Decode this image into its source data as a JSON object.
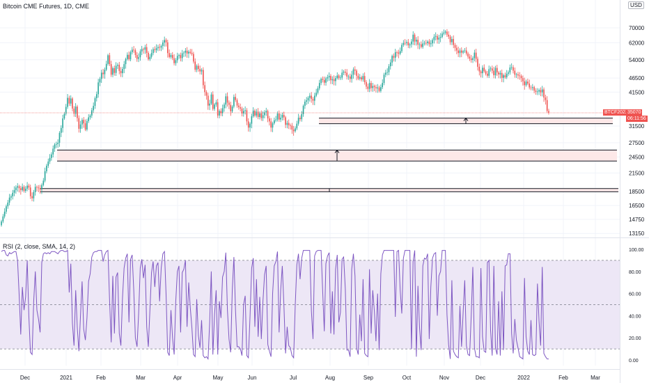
{
  "header": {
    "title": "Bitcoin CME Futures, 1D, CME",
    "currency_button": "USD",
    "price_axis_truncated": "8"
  },
  "rsi_panel": {
    "title": "RSI (2, close, SMA, 14, 2)"
  },
  "price_tag": {
    "symbol": "BTCF2022",
    "price": "35070",
    "countdown": "06:11:56"
  },
  "colors": {
    "up": "#26a69a",
    "down": "#ef5350",
    "rsi_line": "#7e57c2",
    "rsi_band": "#ede7f6",
    "zone_fill": "#fde8e8",
    "zone_line": "#131722",
    "price_line": "#ef5350"
  },
  "chart_data": [
    {
      "type": "candlestick",
      "title": "Bitcoin CME Futures, 1D, CME",
      "x_ticks": [
        "Dec",
        "2021",
        "Feb",
        "Mar",
        "Apr",
        "May",
        "Jun",
        "Jul",
        "Aug",
        "Sep",
        "Oct",
        "Nov",
        "Dec",
        "2022",
        "Feb",
        "Mar"
      ],
      "y_ticks": [
        13150,
        14750,
        16500,
        18500,
        21500,
        24500,
        27500,
        31500,
        35070,
        41500,
        46500,
        54000,
        62000,
        70000
      ],
      "y_scale": "log",
      "ylim": [
        12800,
        82000
      ],
      "last_price": 35070,
      "closes": [
        14500,
        15100,
        15700,
        16400,
        16900,
        17600,
        17800,
        18300,
        18700,
        19100,
        19300,
        19000,
        18700,
        19200,
        18600,
        18900,
        19400,
        19100,
        17800,
        17500,
        18400,
        19200,
        19100,
        19000,
        18800,
        19500,
        20200,
        21800,
        22800,
        23600,
        24300,
        25000,
        26200,
        27100,
        27200,
        27500,
        29800,
        31000,
        33500,
        34800,
        36800,
        39600,
        37800,
        39400,
        36300,
        34800,
        36900,
        33600,
        30800,
        31900,
        33100,
        32200,
        30600,
        32800,
        33800,
        34300,
        35800,
        37100,
        39500,
        40800,
        44900,
        46200,
        48600,
        48000,
        49800,
        52200,
        56000,
        52100,
        47800,
        50400,
        48500,
        51400,
        51800,
        49300,
        48400,
        50100,
        52100,
        54300,
        56200,
        54200,
        57400,
        58600,
        58300,
        56100,
        54400,
        55100,
        57800,
        58900,
        58600,
        59800,
        57100,
        54200,
        55300,
        57000,
        58800,
        58400,
        59300,
        59900,
        59600,
        60400,
        62100,
        63400,
        62200,
        57000,
        55200,
        56100,
        54700,
        52500,
        53800,
        55700,
        56100,
        54700,
        56900,
        57200,
        58100,
        56800,
        57600,
        57100,
        56600,
        53200,
        49800,
        51400,
        50100,
        49100,
        49700,
        43900,
        41500,
        40300,
        37200,
        37800,
        40700,
        36200,
        37500,
        38200,
        34300,
        35600,
        35000,
        36400,
        37500,
        40100,
        38100,
        37400,
        35500,
        36900,
        39900,
        38900,
        37200,
        36700,
        36300,
        34900,
        35600,
        35800,
        32700,
        31100,
        32100,
        34100,
        35700,
        34300,
        35400,
        33900,
        34900,
        33600,
        34400,
        35200,
        35600,
        33500,
        32700,
        31100,
        32200,
        33000,
        33200,
        34900,
        33200,
        33700,
        34500,
        33800,
        31800,
        32300,
        31700,
        31600,
        30600,
        30200,
        30900,
        32100,
        33700,
        33300,
        34700,
        37100,
        38400,
        38800,
        39600,
        40300,
        39300,
        38700,
        40300,
        41300,
        42800,
        44700,
        46200,
        45800,
        44800,
        46400,
        46800,
        47300,
        45700,
        46100,
        45400,
        46500,
        47500,
        46500,
        46700,
        48600,
        49000,
        48600,
        47100,
        47100,
        46200,
        47800,
        49900,
        49400,
        47400,
        46300,
        46800,
        46000,
        47300,
        45000,
        43400,
        42600,
        44700,
        42900,
        43600,
        43200,
        42800,
        43100,
        41900,
        43200,
        44700,
        47800,
        48600,
        48800,
        51200,
        52800,
        55700,
        54900,
        57400,
        57300,
        56700,
        57900,
        60900,
        61900,
        61800,
        62300,
        60700,
        61200,
        62600,
        66200,
        62600,
        63500,
        61000,
        61200,
        59900,
        61600,
        61900,
        61800,
        62600,
        61300,
        61700,
        63400,
        65100,
        65500,
        63600,
        64600,
        65000,
        66800,
        67300,
        67900,
        66200,
        65200,
        62300,
        63900,
        60900,
        59500,
        58200,
        57000,
        58200,
        57200,
        57900,
        58200,
        56800,
        55400,
        54500,
        53900,
        54700,
        57200,
        54400,
        51000,
        49100,
        48400,
        50600,
        49200,
        48200,
        47400,
        50000,
        50300,
        49400,
        47600,
        50500,
        48700,
        47900,
        48500,
        46600,
        47600,
        46800,
        48200,
        48700,
        50700,
        50800,
        49400,
        47800,
        48000,
        47500,
        47300,
        46500,
        45300,
        43900,
        45200,
        44500,
        43100,
        42900,
        43200,
        42000,
        41600,
        41700,
        42200,
        41400,
        42400,
        39700,
        38900,
        35600,
        35070
      ],
      "horizontal_zones": [
        {
          "top": 33600,
          "bottom": 32100
        },
        {
          "top": 25900,
          "bottom": 23700
        },
        {
          "top": 18950,
          "bottom": 18450
        }
      ]
    },
    {
      "type": "line",
      "title": "RSI (2, close, SMA, 14, 2)",
      "ylim": [
        0,
        100
      ],
      "y_ticks": [
        "0.00",
        "20.00",
        "40.00",
        "60.00",
        "80.00",
        "100.00"
      ],
      "bands": [
        10,
        50,
        90
      ],
      "values": [
        98,
        99,
        99,
        95,
        94,
        97,
        96,
        97,
        98,
        98,
        90,
        59,
        23,
        66,
        45,
        57,
        90,
        40,
        7,
        5,
        53,
        80,
        45,
        37,
        25,
        88,
        96,
        97,
        96,
        97,
        96,
        98,
        98,
        98,
        97,
        96,
        98,
        99,
        99,
        98,
        98,
        99,
        61,
        87,
        33,
        13,
        63,
        29,
        8,
        40,
        71,
        28,
        18,
        38,
        71,
        78,
        93,
        97,
        98,
        98,
        99,
        99,
        99,
        89,
        95,
        98,
        99,
        55,
        16,
        76,
        24,
        75,
        79,
        24,
        13,
        56,
        83,
        92,
        96,
        34,
        91,
        95,
        63,
        20,
        12,
        42,
        83,
        91,
        74,
        86,
        30,
        12,
        45,
        79,
        89,
        66,
        85,
        88,
        53,
        83,
        96,
        98,
        59,
        7,
        4,
        45,
        20,
        5,
        53,
        80,
        85,
        25,
        79,
        82,
        90,
        30,
        70,
        47,
        29,
        5,
        3,
        55,
        22,
        11,
        36,
        4,
        2,
        3,
        1,
        34,
        80,
        5,
        41,
        63,
        5,
        53,
        38,
        75,
        80,
        97,
        45,
        19,
        7,
        64,
        93,
        45,
        12,
        12,
        10,
        4,
        50,
        58,
        4,
        2,
        40,
        83,
        92,
        30,
        73,
        21,
        57,
        19,
        53,
        77,
        85,
        14,
        8,
        3,
        60,
        85,
        89,
        98,
        25,
        63,
        85,
        48,
        6,
        30,
        13,
        11,
        4,
        2,
        50,
        86,
        96,
        73,
        92,
        99,
        99,
        99,
        99,
        99,
        44,
        19,
        94,
        98,
        99,
        99,
        99,
        62,
        26,
        87,
        94,
        97,
        24,
        62,
        23,
        82,
        95,
        34,
        43,
        91,
        93,
        64,
        9,
        9,
        3,
        82,
        96,
        76,
        11,
        5,
        41,
        17,
        73,
        6,
        4,
        3,
        82,
        24,
        63,
        44,
        17,
        60,
        9,
        78,
        95,
        99,
        99,
        99,
        99,
        99,
        99,
        99,
        39,
        98,
        99,
        63,
        42,
        92,
        99,
        99,
        99,
        99,
        10,
        89,
        99,
        3,
        67,
        29,
        9,
        85,
        92,
        91,
        96,
        19,
        66,
        92,
        96,
        97,
        40,
        76,
        80,
        99,
        99,
        99,
        41,
        14,
        1,
        72,
        8,
        5,
        3,
        2,
        49,
        12,
        43,
        72,
        13,
        5,
        4,
        40,
        84,
        11,
        3,
        3,
        2,
        83,
        21,
        8,
        7,
        88,
        90,
        27,
        4,
        85,
        11,
        5,
        53,
        4,
        62,
        9,
        85,
        86,
        96,
        96,
        24,
        6,
        37,
        18,
        11,
        3,
        2,
        1,
        74,
        21,
        8,
        5,
        36,
        5,
        4,
        5,
        69,
        35,
        13,
        84,
        6,
        3,
        1,
        1
      ]
    }
  ]
}
